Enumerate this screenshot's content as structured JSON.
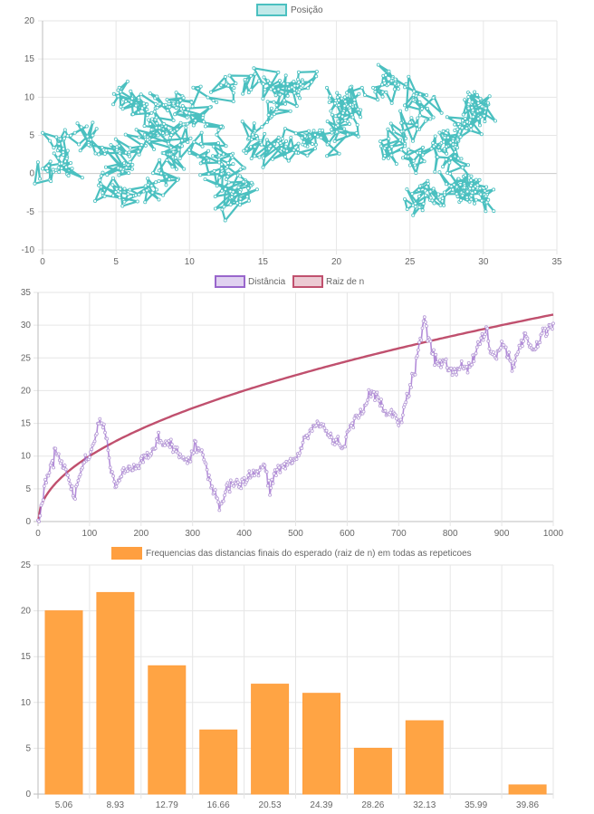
{
  "chart_data": [
    {
      "type": "scatter",
      "legend_position": "top",
      "series": [
        {
          "name": "Posição",
          "color": "#4bc0c0",
          "points_count": 1000
        }
      ],
      "xlim": [
        0,
        35
      ],
      "ylim": [
        -10,
        20
      ],
      "x_ticks": [
        "0",
        "5",
        "10",
        "15",
        "20",
        "25",
        "30",
        "35"
      ],
      "y_ticks": [
        "20",
        "15",
        "10",
        "5",
        "0",
        "-5",
        "-10"
      ],
      "grid": true
    },
    {
      "type": "line",
      "legend_position": "top",
      "series": [
        {
          "name": "Distância",
          "color": "#9966cc",
          "points_count": 1000
        },
        {
          "name": "Raiz de n",
          "color": "#c0506e",
          "formula": "sqrt(n)"
        }
      ],
      "xlim": [
        0,
        1000
      ],
      "ylim": [
        0,
        35
      ],
      "x_ticks": [
        "0",
        "100",
        "200",
        "300",
        "400",
        "500",
        "600",
        "700",
        "800",
        "900",
        "1000"
      ],
      "y_ticks": [
        "35",
        "30",
        "25",
        "20",
        "15",
        "10",
        "5",
        "0"
      ],
      "distance_keypoints": [
        [
          0,
          0
        ],
        [
          5,
          2
        ],
        [
          15,
          6
        ],
        [
          25,
          8.5
        ],
        [
          35,
          11
        ],
        [
          45,
          9.5
        ],
        [
          55,
          7.5
        ],
        [
          65,
          5
        ],
        [
          70,
          3.5
        ],
        [
          80,
          7
        ],
        [
          95,
          10
        ],
        [
          105,
          11
        ],
        [
          115,
          14
        ],
        [
          120,
          15.5
        ],
        [
          130,
          14
        ],
        [
          140,
          9
        ],
        [
          150,
          5
        ],
        [
          160,
          7
        ],
        [
          175,
          8
        ],
        [
          190,
          8.5
        ],
        [
          205,
          10
        ],
        [
          220,
          10.5
        ],
        [
          235,
          12.5
        ],
        [
          250,
          12
        ],
        [
          265,
          11
        ],
        [
          280,
          10
        ],
        [
          295,
          9
        ],
        [
          305,
          11.5
        ],
        [
          315,
          11
        ],
        [
          325,
          9
        ],
        [
          335,
          6
        ],
        [
          345,
          4
        ],
        [
          355,
          2.5
        ],
        [
          365,
          5
        ],
        [
          380,
          6
        ],
        [
          395,
          5.5
        ],
        [
          410,
          7
        ],
        [
          425,
          7.5
        ],
        [
          440,
          8.5
        ],
        [
          450,
          4.5
        ],
        [
          460,
          7.5
        ],
        [
          475,
          8.5
        ],
        [
          490,
          9
        ],
        [
          505,
          10
        ],
        [
          520,
          13
        ],
        [
          535,
          14.5
        ],
        [
          550,
          15
        ],
        [
          565,
          13
        ],
        [
          575,
          12.5
        ],
        [
          590,
          11.5
        ],
        [
          605,
          14
        ],
        [
          620,
          16
        ],
        [
          635,
          18
        ],
        [
          650,
          20
        ],
        [
          665,
          18
        ],
        [
          675,
          16
        ],
        [
          685,
          17
        ],
        [
          700,
          15
        ],
        [
          715,
          18.5
        ],
        [
          730,
          23
        ],
        [
          740,
          27
        ],
        [
          750,
          31
        ],
        [
          760,
          27
        ],
        [
          770,
          25
        ],
        [
          780,
          24
        ],
        [
          790,
          24.5
        ],
        [
          800,
          23
        ],
        [
          810,
          22.5
        ],
        [
          820,
          24
        ],
        [
          835,
          23.5
        ],
        [
          845,
          25
        ],
        [
          860,
          28
        ],
        [
          870,
          29
        ],
        [
          880,
          25.5
        ],
        [
          890,
          25
        ],
        [
          900,
          27.5
        ],
        [
          910,
          26
        ],
        [
          920,
          23.5
        ],
        [
          930,
          25.5
        ],
        [
          945,
          28.5
        ],
        [
          955,
          27
        ],
        [
          965,
          26
        ],
        [
          975,
          28.5
        ],
        [
          990,
          29.5
        ],
        [
          1000,
          30
        ]
      ]
    },
    {
      "type": "bar",
      "legend_position": "top",
      "series": [
        {
          "name": "Frequencias das distancias finais do esperado (raiz de n) em todas as repeticoes",
          "color": "#ff9f40"
        }
      ],
      "categories": [
        "5.06",
        "8.93",
        "12.79",
        "16.66",
        "20.53",
        "24.39",
        "28.26",
        "32.13",
        "35.99",
        "39.86"
      ],
      "values": [
        20,
        22,
        14,
        7,
        12,
        11,
        5,
        8,
        0,
        1
      ],
      "ylim": [
        0,
        25
      ],
      "y_ticks": [
        "25",
        "20",
        "15",
        "10",
        "5",
        "0"
      ]
    }
  ]
}
